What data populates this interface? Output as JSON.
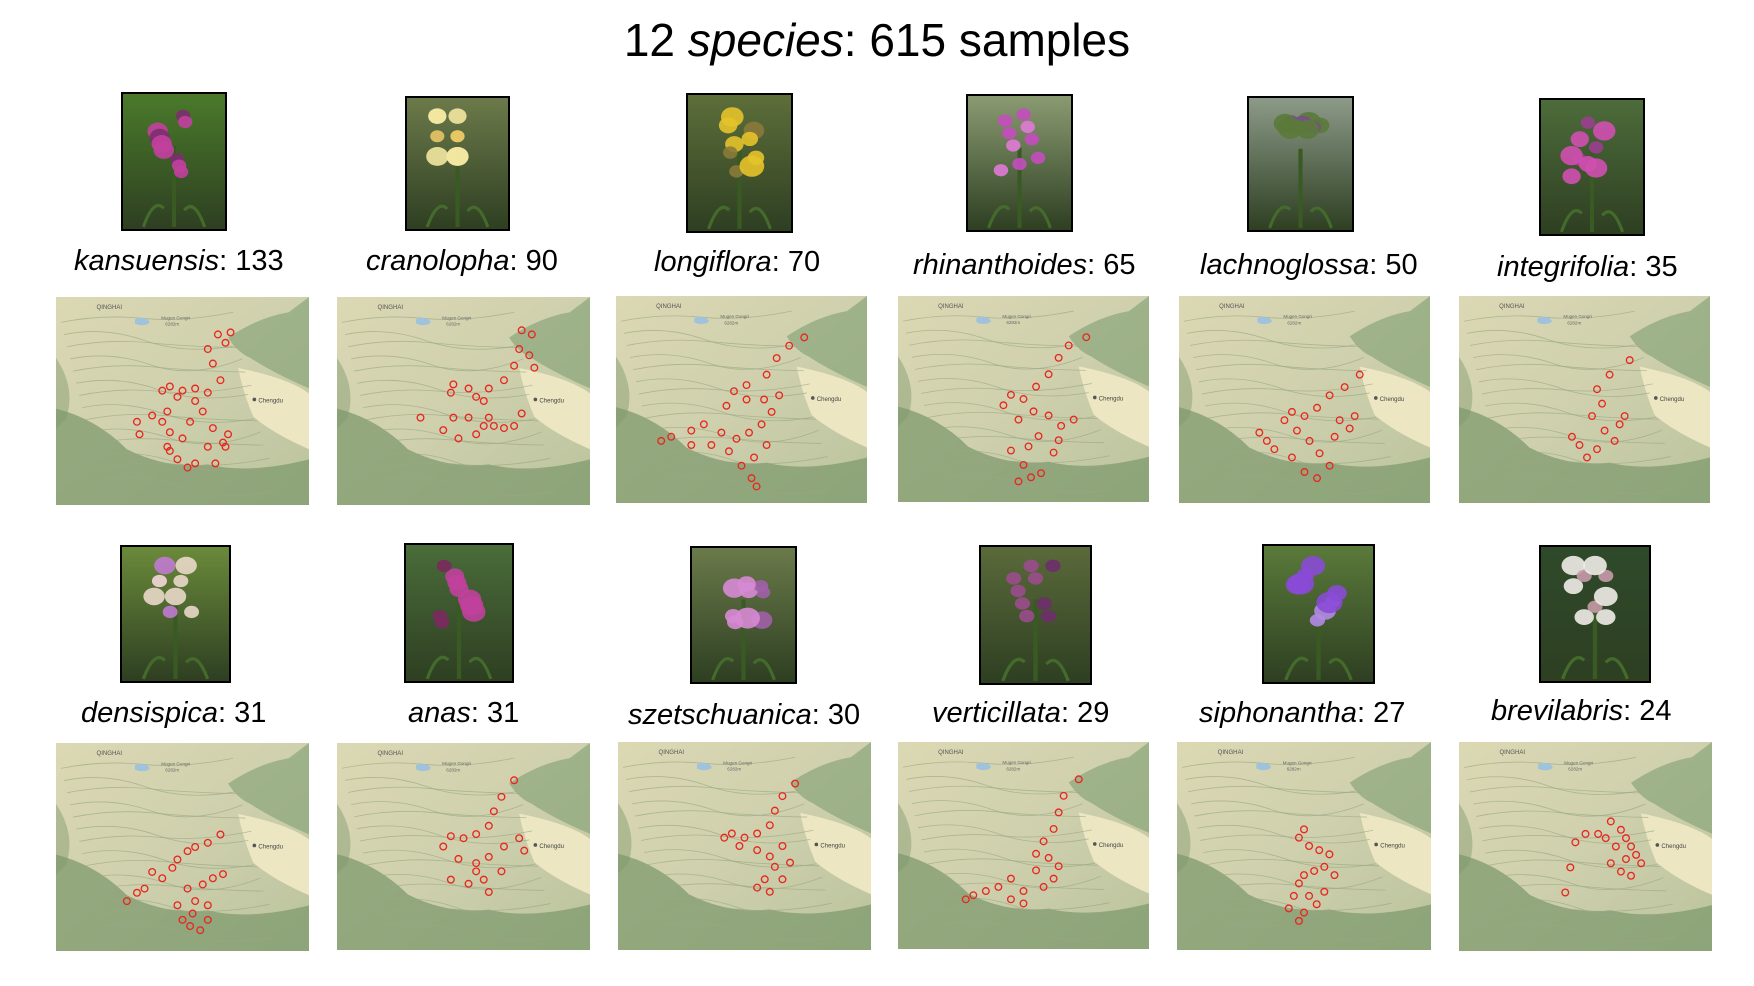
{
  "title": {
    "count": "12",
    "word": "species",
    "rest": ": 615 samples"
  },
  "map_labels": {
    "province": "QINGHAI",
    "peak": "Mugen Gongri",
    "elevation": "6282m",
    "city": "Chengdu"
  },
  "colors": {
    "sample_marker": "#e8261f",
    "map_base": "#ece7c2",
    "map_relief": "#7f9a6e"
  },
  "species": [
    {
      "name": "kansuensis",
      "count": "133",
      "photo": "magenta-spike-flower-photo"
    },
    {
      "name": "cranolopha",
      "count": "90",
      "photo": "pale-yellow-flower-photo"
    },
    {
      "name": "longiflora",
      "count": "70",
      "photo": "yellow-tubular-flower-photo"
    },
    {
      "name": "rhinanthoides",
      "count": "65",
      "photo": "pink-beaked-flower-photo"
    },
    {
      "name": "lachnoglossa",
      "count": "50",
      "photo": "meadow-spike-photo"
    },
    {
      "name": "integrifolia",
      "count": "35",
      "photo": "pink-flower-photo"
    },
    {
      "name": "densispica",
      "count": "31",
      "photo": "white-hairy-spike-photo"
    },
    {
      "name": "anas",
      "count": "31",
      "photo": "dark-pink-spike-photo"
    },
    {
      "name": "szetschuanica",
      "count": "30",
      "photo": "pink-cluster-photo"
    },
    {
      "name": "verticillata",
      "count": "29",
      "photo": "purple-whorl-photo"
    },
    {
      "name": "siphonantha",
      "count": "27",
      "photo": "violet-flower-photo"
    },
    {
      "name": "brevilabris",
      "count": "24",
      "photo": "white-small-flower-photo"
    }
  ]
}
